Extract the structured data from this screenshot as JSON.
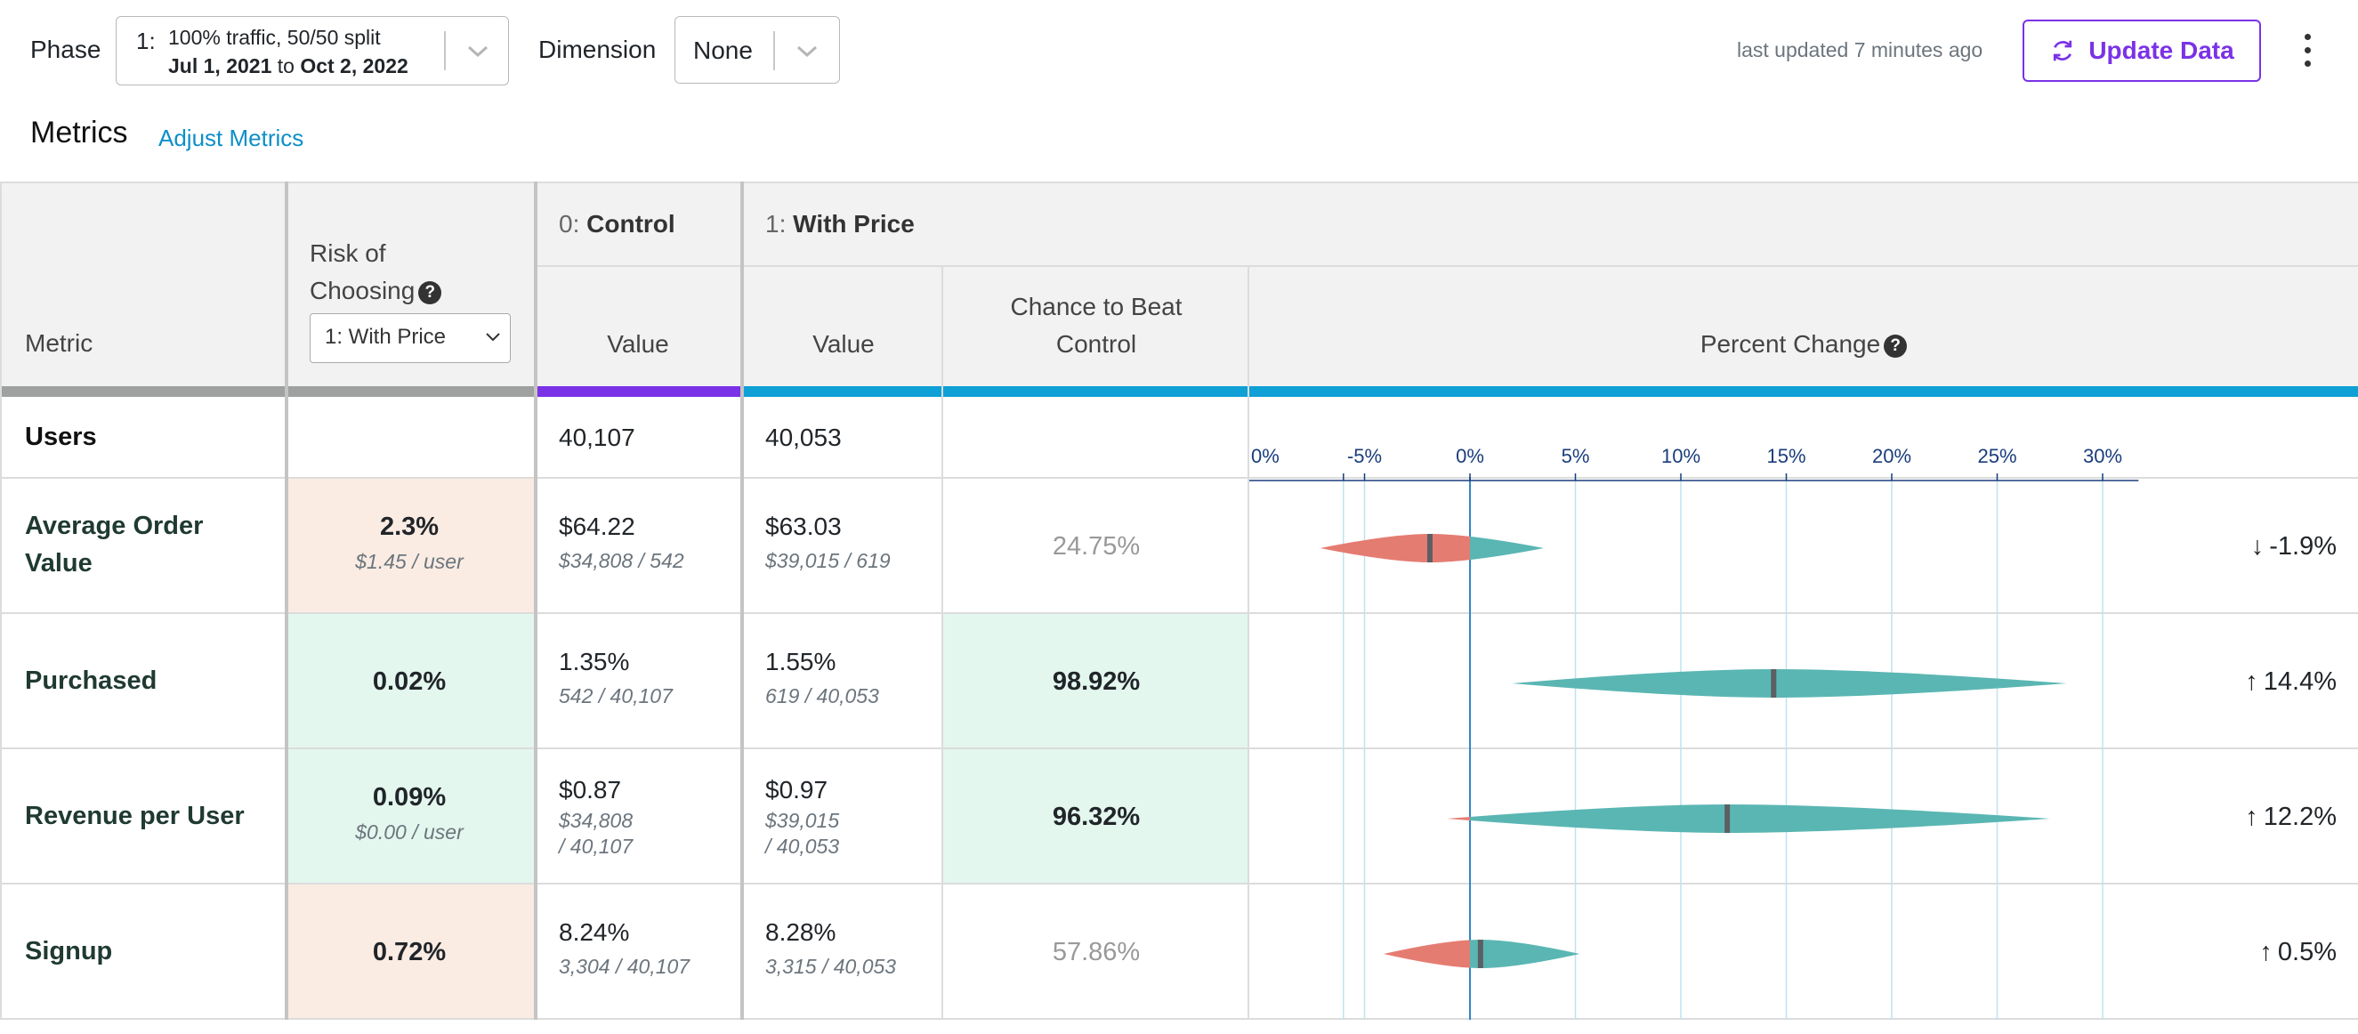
{
  "topbar": {
    "phase_label": "Phase",
    "phase_number": "1:",
    "phase_desc": "100% traffic, 50/50 split",
    "phase_start": "Jul 1, 2021",
    "phase_to": "to",
    "phase_end": "Oct 2, 2022",
    "dimension_label": "Dimension",
    "dimension_value": "None",
    "last_updated": "last updated 7 minutes ago",
    "update_button": "Update Data"
  },
  "metrics": {
    "title": "Metrics",
    "adjust_link": "Adjust Metrics"
  },
  "table": {
    "headers": {
      "metric": "Metric",
      "risk_line1": "Risk of",
      "risk_line2": "Choosing",
      "risk_select": "1: With Price",
      "control_num": "0:",
      "control_name": "Control",
      "variant_num": "1:",
      "variant_name": "With Price",
      "value": "Value",
      "ctb_line1": "Chance to Beat",
      "ctb_line2": "Control",
      "percent_change": "Percent Change"
    },
    "users_row": {
      "label": "Users",
      "control": "40,107",
      "variant": "40,053"
    },
    "axis_ticks": [
      "0%",
      "-5%",
      "0%",
      "5%",
      "10%",
      "15%",
      "20%",
      "25%",
      "30%"
    ],
    "rows": [
      {
        "name_line1": "Average Order",
        "name_line2": "Value",
        "risk": "2.3%",
        "risk_sub": "$1.45 / user",
        "risk_status": "bad",
        "control_value": "$64.22",
        "control_sub1": "$34,808 / 542",
        "control_sub2": "",
        "variant_value": "$63.03",
        "variant_sub1": "$39,015 / 619",
        "variant_sub2": "",
        "ctb": "24.75%",
        "ctb_status": "neutral",
        "change": "-1.9%",
        "direction": "down",
        "ci_low": -7.1,
        "ci_high": 3.5,
        "expected": -1.9
      },
      {
        "name_line1": "Purchased",
        "name_line2": "",
        "risk": "0.02%",
        "risk_sub": "",
        "risk_status": "good",
        "control_value": "1.35%",
        "control_sub1": "542 / 40,107",
        "control_sub2": "",
        "variant_value": "1.55%",
        "variant_sub1": "619 / 40,053",
        "variant_sub2": "",
        "ctb": "98.92%",
        "ctb_status": "win",
        "change": "14.4%",
        "direction": "up",
        "ci_low": 2.0,
        "ci_high": 28.3,
        "expected": 14.4
      },
      {
        "name_line1": "Revenue per User",
        "name_line2": "",
        "risk": "0.09%",
        "risk_sub": "$0.00 / user",
        "risk_status": "good",
        "control_value": "$0.87",
        "control_sub1": "$34,808",
        "control_sub2": "/ 40,107",
        "variant_value": "$0.97",
        "variant_sub1": "$39,015",
        "variant_sub2": "/ 40,053",
        "ctb": "96.32%",
        "ctb_status": "win",
        "change": "12.2%",
        "direction": "up",
        "ci_low": -1.1,
        "ci_high": 27.5,
        "expected": 12.2
      },
      {
        "name_line1": "Signup",
        "name_line2": "",
        "risk": "0.72%",
        "risk_sub": "",
        "risk_status": "bad",
        "control_value": "8.24%",
        "control_sub1": "3,304 / 40,107",
        "control_sub2": "",
        "variant_value": "8.28%",
        "variant_sub1": "3,315 / 40,053",
        "variant_sub2": "",
        "ctb": "57.86%",
        "ctb_status": "neutral",
        "change": "0.5%",
        "direction": "up",
        "ci_low": -4.1,
        "ci_high": 5.2,
        "expected": 0.5
      }
    ]
  },
  "colors": {
    "control_bar": "#7a32e6",
    "variant_bar": "#0fa0d5",
    "metric_bar": "#9ea19f",
    "risk_good_bg": "#e3f7ee",
    "risk_bad_bg": "#faece3",
    "ci_positive": "#5ab6b3",
    "ci_negative": "#e57c72",
    "accent": "#7a32e6",
    "link": "#0d8fc9"
  }
}
